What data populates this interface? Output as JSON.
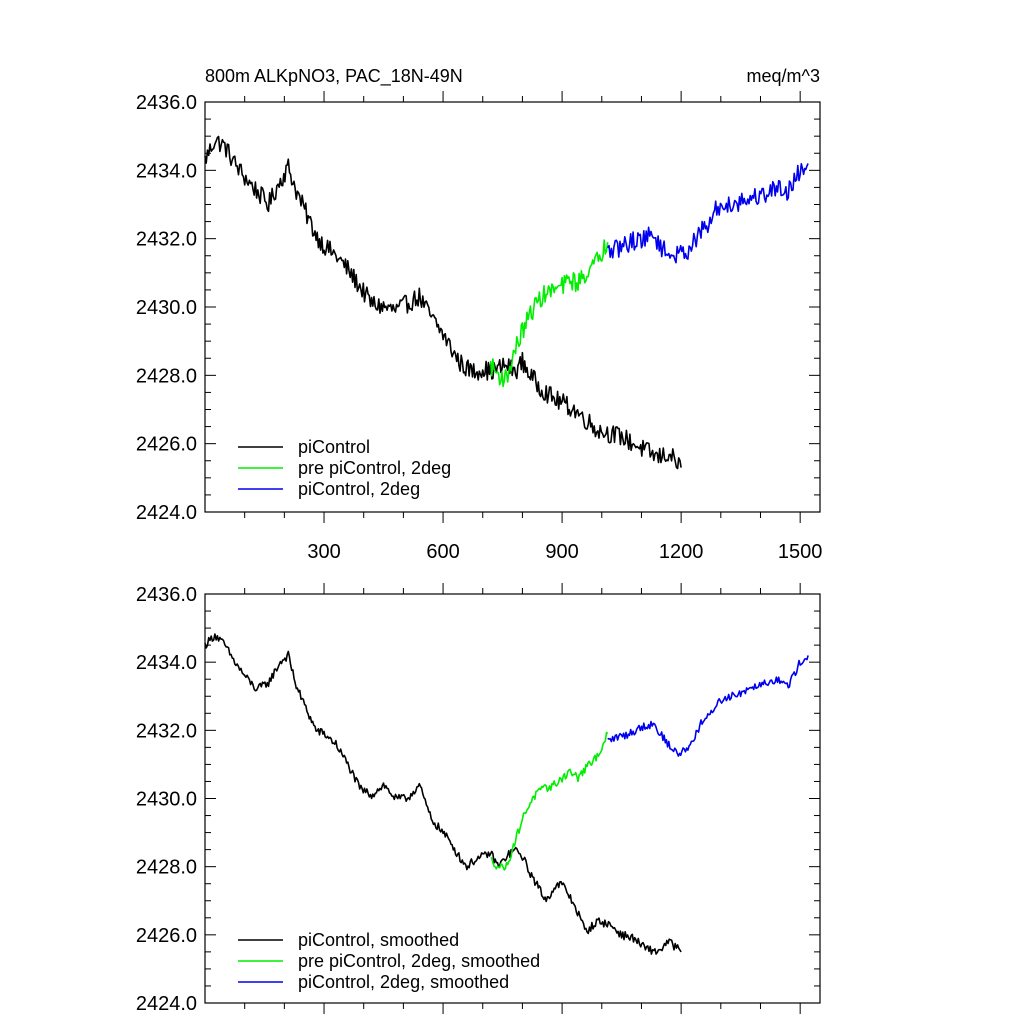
{
  "chart_data": [
    {
      "type": "line",
      "title": "800m ALKpNO3, PAC_18N-49N",
      "units": "meq/m^3",
      "xlim": [
        0,
        1550
      ],
      "ylim": [
        2424,
        2436
      ],
      "xticks": [
        300,
        600,
        900,
        1200,
        1500
      ],
      "xtick_labels": [
        "300",
        "600",
        "900",
        "1200",
        "1500"
      ],
      "yticks": [
        2424,
        2426,
        2428,
        2430,
        2432,
        2434,
        2436
      ],
      "ytick_labels": [
        "2424.0",
        "2426.0",
        "2428.0",
        "2430.0",
        "2432.0",
        "2434.0",
        "2436.0"
      ],
      "legend_position": "bottom-left",
      "noise": 0.28,
      "series": [
        {
          "name": "piControl",
          "color": "#000000",
          "x": [
            0,
            25,
            50,
            75,
            100,
            130,
            160,
            190,
            210,
            230,
            260,
            280,
            300,
            330,
            360,
            390,
            420,
            450,
            480,
            510,
            540,
            570,
            600,
            620,
            640,
            660,
            680,
            700,
            720,
            740,
            760,
            780,
            800,
            820,
            840,
            860,
            880,
            900,
            930,
            960,
            990,
            1020,
            1050,
            1080,
            1110,
            1140,
            1170,
            1200
          ],
          "y": [
            2434.3,
            2434.9,
            2434.7,
            2434.2,
            2433.8,
            2433.4,
            2433.0,
            2433.7,
            2434.1,
            2433.4,
            2432.6,
            2432.1,
            2431.8,
            2431.5,
            2431.1,
            2430.6,
            2430.1,
            2430.0,
            2429.9,
            2430.1,
            2430.3,
            2429.7,
            2429.2,
            2428.8,
            2428.4,
            2428.2,
            2428.1,
            2428.2,
            2428.1,
            2428.2,
            2428.3,
            2428.1,
            2428.4,
            2428.0,
            2427.7,
            2427.5,
            2427.3,
            2427.2,
            2427.0,
            2426.7,
            2426.4,
            2426.3,
            2426.2,
            2426.0,
            2425.8,
            2425.6,
            2425.7,
            2425.3
          ]
        },
        {
          "name": "pre piControl, 2deg",
          "color": "#00ee00",
          "x": [
            720,
            740,
            760,
            780,
            800,
            820,
            840,
            860,
            880,
            900,
            920,
            940,
            960,
            980,
            1000,
            1015
          ],
          "y": [
            2428.3,
            2428.0,
            2427.9,
            2428.7,
            2429.3,
            2429.8,
            2430.2,
            2430.4,
            2430.5,
            2430.6,
            2430.8,
            2430.7,
            2431.0,
            2431.2,
            2431.6,
            2431.9
          ]
        },
        {
          "name": "piControl, 2deg",
          "color": "#0000ee",
          "x": [
            1015,
            1040,
            1070,
            1100,
            1130,
            1160,
            1190,
            1220,
            1250,
            1270,
            1290,
            1320,
            1350,
            1380,
            1410,
            1440,
            1470,
            1500,
            1520
          ],
          "y": [
            2431.6,
            2431.7,
            2431.9,
            2432.0,
            2432.1,
            2431.6,
            2431.5,
            2431.7,
            2432.2,
            2432.4,
            2432.9,
            2433.0,
            2433.1,
            2433.2,
            2433.3,
            2433.5,
            2433.4,
            2434.0,
            2434.2
          ]
        }
      ]
    },
    {
      "type": "line",
      "title": "",
      "units": "",
      "xlim": [
        0,
        1550
      ],
      "ylim": [
        2424,
        2436
      ],
      "xticks": [
        300,
        600,
        900,
        1200,
        1500
      ],
      "xtick_labels": [],
      "yticks": [
        2424,
        2426,
        2428,
        2430,
        2432,
        2434,
        2436
      ],
      "ytick_labels": [
        "2424.0",
        "2426.0",
        "2428.0",
        "2430.0",
        "2432.0",
        "2434.0",
        "2436.0"
      ],
      "legend_position": "bottom-left",
      "noise": 0.12,
      "series": [
        {
          "name": "piControl, smoothed",
          "color": "#000000",
          "x": [
            0,
            25,
            50,
            75,
            100,
            130,
            160,
            190,
            210,
            230,
            260,
            280,
            300,
            330,
            360,
            390,
            420,
            450,
            480,
            510,
            540,
            570,
            600,
            620,
            640,
            660,
            680,
            700,
            720,
            740,
            760,
            780,
            800,
            820,
            840,
            860,
            880,
            900,
            930,
            960,
            990,
            1020,
            1050,
            1080,
            1110,
            1140,
            1170,
            1200
          ],
          "y": [
            2434.5,
            2434.8,
            2434.5,
            2434.0,
            2433.6,
            2433.2,
            2433.4,
            2434.0,
            2434.2,
            2433.3,
            2432.5,
            2432.0,
            2431.9,
            2431.6,
            2431.0,
            2430.3,
            2430.1,
            2430.4,
            2430.0,
            2430.0,
            2430.4,
            2429.4,
            2429.0,
            2428.7,
            2428.3,
            2428.0,
            2428.2,
            2428.3,
            2428.4,
            2428.0,
            2428.3,
            2428.5,
            2428.3,
            2427.8,
            2427.4,
            2427.0,
            2427.4,
            2427.5,
            2426.9,
            2426.1,
            2426.4,
            2426.3,
            2426.0,
            2425.9,
            2425.6,
            2425.5,
            2425.8,
            2425.5
          ]
        },
        {
          "name": "pre piControl, 2deg, smoothed",
          "color": "#00ee00",
          "x": [
            720,
            740,
            760,
            780,
            800,
            820,
            840,
            860,
            880,
            900,
            920,
            940,
            960,
            980,
            1000,
            1015
          ],
          "y": [
            2428.2,
            2428.0,
            2428.0,
            2428.7,
            2429.4,
            2429.9,
            2430.2,
            2430.3,
            2430.4,
            2430.6,
            2430.8,
            2430.6,
            2430.9,
            2431.1,
            2431.5,
            2431.9
          ]
        },
        {
          "name": "piControl, 2deg, smoothed",
          "color": "#0000ee",
          "x": [
            1015,
            1040,
            1070,
            1100,
            1130,
            1160,
            1190,
            1220,
            1250,
            1270,
            1290,
            1320,
            1350,
            1380,
            1410,
            1440,
            1470,
            1500,
            1520
          ],
          "y": [
            2431.7,
            2431.8,
            2431.9,
            2432.1,
            2432.2,
            2431.7,
            2431.3,
            2431.5,
            2432.2,
            2432.4,
            2432.8,
            2433.0,
            2433.1,
            2433.3,
            2433.4,
            2433.5,
            2433.3,
            2434.0,
            2434.2
          ]
        }
      ]
    }
  ]
}
